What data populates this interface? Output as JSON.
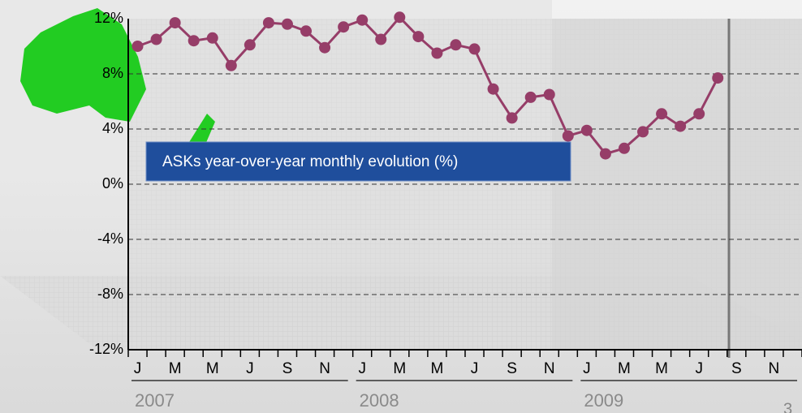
{
  "chart_data": {
    "type": "line",
    "title": "ASKs year-over-year monthly evolution (%)",
    "categories": [
      "J",
      null,
      "M",
      null,
      "M",
      null,
      "J",
      null,
      "S",
      null,
      "N",
      null,
      "J",
      null,
      "M",
      null,
      "M",
      null,
      "J",
      null,
      "S",
      null,
      "N",
      null,
      "J",
      null,
      "M",
      null,
      "M",
      null,
      "J",
      null,
      "S",
      null,
      "N",
      null
    ],
    "years": [
      "2007",
      "2008",
      "2009"
    ],
    "series": [
      {
        "color": "#963d68",
        "values": [
          10.0,
          10.5,
          11.7,
          10.4,
          10.6,
          8.6,
          10.1,
          11.7,
          11.6,
          11.1,
          9.9,
          11.4,
          11.9,
          10.5,
          12.1,
          10.7,
          9.5,
          10.1,
          9.8,
          6.9,
          4.8,
          6.3,
          6.5,
          3.5,
          3.9,
          2.2,
          2.6,
          3.8,
          5.1,
          4.2,
          5.1,
          7.7,
          null,
          null,
          null,
          null
        ]
      }
    ],
    "ylim": [
      -12,
      12
    ],
    "yticks": [
      {
        "value": -12,
        "label": "-12%"
      },
      {
        "value": -8,
        "label": "-8%"
      },
      {
        "value": -4,
        "label": "-4%"
      },
      {
        "value": 0,
        "label": "0%"
      },
      {
        "value": 4,
        "label": "4%"
      },
      {
        "value": 8,
        "label": "8%"
      },
      {
        "value": 12,
        "label": "12%"
      }
    ],
    "grid": true,
    "page_number": "3"
  }
}
